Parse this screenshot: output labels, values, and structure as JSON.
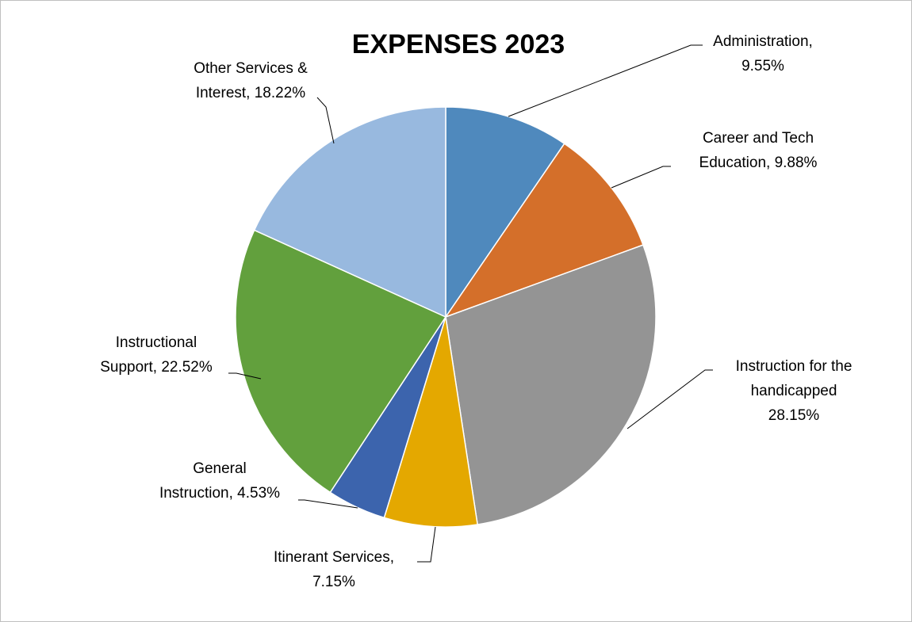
{
  "chart_data": {
    "type": "pie",
    "title": "EXPENSES 2023",
    "start_angle_deg": 0,
    "direction": "clockwise",
    "slices": [
      {
        "name": "Administration",
        "value": 9.55,
        "label_lines": [
          "Administration,",
          "9.55%"
        ],
        "color": "#4f89bd"
      },
      {
        "name": "Career and Tech Education",
        "value": 9.88,
        "label_lines": [
          "Career and Tech",
          "Education, 9.88%"
        ],
        "color": "#d46f2a"
      },
      {
        "name": "Instruction for the handicapped",
        "value": 28.15,
        "label_lines": [
          "Instruction for the",
          "handicapped",
          "28.15%"
        ],
        "color": "#949494"
      },
      {
        "name": "Itinerant Services",
        "value": 7.15,
        "label_lines": [
          "Itinerant Services,",
          "7.15%"
        ],
        "color": "#e4a800"
      },
      {
        "name": "General Instruction",
        "value": 4.53,
        "label_lines": [
          "General",
          "Instruction, 4.53%"
        ],
        "color": "#3c64ad"
      },
      {
        "name": "Instructional Support",
        "value": 22.52,
        "label_lines": [
          "Instructional",
          "Support, 22.52%"
        ],
        "color": "#62a03d"
      },
      {
        "name": "Other Services & Interest",
        "value": 18.22,
        "label_lines": [
          "Other Services &",
          "Interest, 18.22%"
        ],
        "color": "#98b9df"
      }
    ]
  }
}
